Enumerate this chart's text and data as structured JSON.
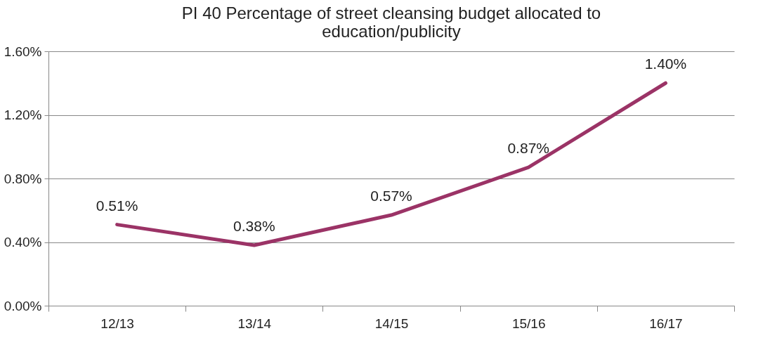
{
  "chart_data": {
    "type": "line",
    "title": "PI 40 Percentage of street cleansing budget allocated to education/publicity",
    "categories": [
      "12/13",
      "13/14",
      "14/15",
      "15/16",
      "16/17"
    ],
    "series": [
      {
        "color": "#9b3366",
        "values": [
          0.51,
          0.38,
          0.57,
          0.87,
          1.4
        ],
        "value_labels": [
          "0.51%",
          "0.38%",
          "0.57%",
          "0.87%",
          "1.40%"
        ]
      }
    ],
    "ylim": [
      0,
      1.6
    ],
    "yticks": [
      {
        "value": 0,
        "label": "0.00%"
      },
      {
        "value": 0.4,
        "label": "0.40%"
      },
      {
        "value": 0.8,
        "label": "0.80%"
      },
      {
        "value": 1.2,
        "label": "1.20%"
      },
      {
        "value": 1.6,
        "label": "1.60%"
      }
    ],
    "grid": "y",
    "marker": "none",
    "line_style": "solid"
  }
}
